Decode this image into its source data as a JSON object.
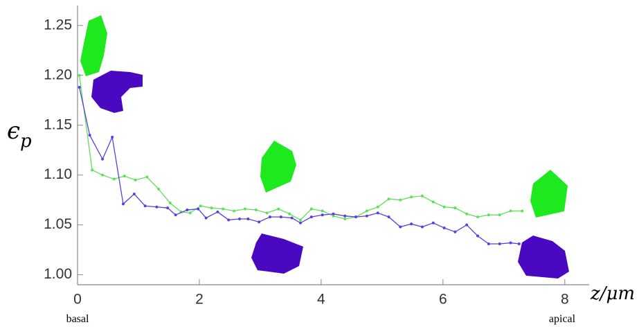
{
  "chart_data": {
    "type": "line",
    "x_label": "z/μm",
    "y_label": {
      "symbol": "ϵ",
      "subscript": "p"
    },
    "annotations": {
      "left": "basal",
      "right": "apical"
    },
    "xlim": [
      0,
      8.4
    ],
    "ylim": [
      0.99,
      1.27
    ],
    "xticks": [
      0,
      2,
      4,
      6,
      8
    ],
    "yticks": [
      {
        "value": 1.0,
        "label": "1.00"
      },
      {
        "value": 1.05,
        "label": "1.05"
      },
      {
        "value": 1.1,
        "label": "1.10"
      },
      {
        "value": 1.15,
        "label": "1.15"
      },
      {
        "value": 1.2,
        "label": "1.20"
      },
      {
        "value": 1.25,
        "label": "1.25"
      }
    ],
    "series": [
      {
        "color": "#5fe05a",
        "x": [
          0.03,
          0.24,
          0.41,
          0.6,
          0.77,
          0.95,
          1.14,
          1.33,
          1.52,
          1.7,
          1.85,
          2.02,
          2.2,
          2.39,
          2.57,
          2.75,
          2.93,
          3.11,
          3.3,
          3.48,
          3.66,
          3.84,
          4.02,
          4.2,
          4.39,
          4.57,
          4.75,
          4.93,
          5.11,
          5.3,
          5.48,
          5.66,
          5.84,
          6.02,
          6.2,
          6.39,
          6.57,
          6.75,
          6.93,
          7.11,
          7.3
        ],
        "values": [
          1.2,
          1.105,
          1.1,
          1.096,
          1.099,
          1.095,
          1.098,
          1.086,
          1.072,
          1.063,
          1.062,
          1.069,
          1.067,
          1.066,
          1.064,
          1.066,
          1.065,
          1.062,
          1.066,
          1.061,
          1.055,
          1.066,
          1.064,
          1.059,
          1.056,
          1.058,
          1.064,
          1.068,
          1.076,
          1.075,
          1.078,
          1.079,
          1.073,
          1.068,
          1.067,
          1.061,
          1.058,
          1.06,
          1.06,
          1.064,
          1.064
        ]
      },
      {
        "color": "#5a3fe0",
        "x": [
          0.03,
          0.2,
          0.41,
          0.57,
          0.75,
          0.93,
          1.11,
          1.3,
          1.48,
          1.61,
          1.8,
          1.98,
          2.11,
          2.3,
          2.48,
          2.66,
          2.8,
          2.98,
          3.16,
          3.34,
          3.52,
          3.66,
          3.84,
          4.02,
          4.2,
          4.39,
          4.57,
          4.75,
          4.93,
          5.11,
          5.3,
          5.48,
          5.66,
          5.84,
          6.02,
          6.2,
          6.39,
          6.57,
          6.75,
          6.93,
          7.11,
          7.25
        ],
        "values": [
          1.188,
          1.14,
          1.116,
          1.138,
          1.071,
          1.081,
          1.069,
          1.068,
          1.067,
          1.06,
          1.065,
          1.066,
          1.057,
          1.063,
          1.055,
          1.056,
          1.056,
          1.053,
          1.058,
          1.058,
          1.057,
          1.052,
          1.058,
          1.06,
          1.061,
          1.059,
          1.058,
          1.059,
          1.062,
          1.058,
          1.048,
          1.051,
          1.048,
          1.052,
          1.047,
          1.043,
          1.05,
          1.039,
          1.031,
          1.031,
          1.032,
          1.031
        ]
      }
    ]
  }
}
